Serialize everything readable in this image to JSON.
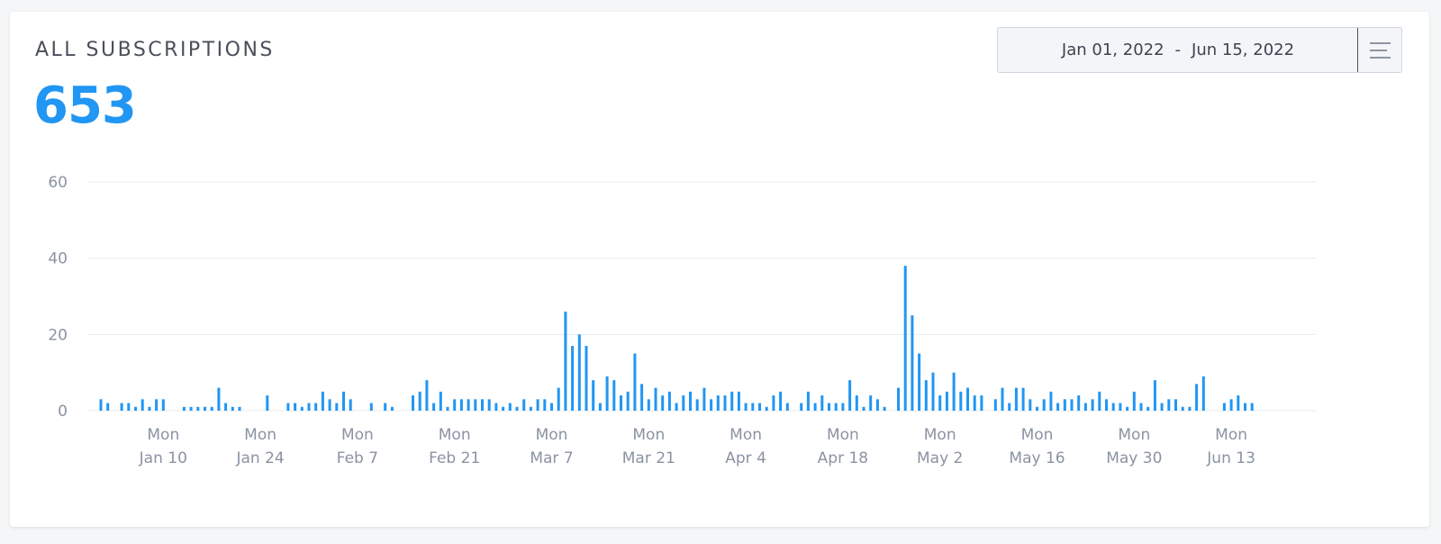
{
  "header": {
    "title": "ALL SUBSCRIPTIONS",
    "total": "653"
  },
  "date_range": {
    "start": "Jan 01, 2022",
    "separator": "-",
    "end": "Jun 15, 2022",
    "menu_icon": "hamburger-icon"
  },
  "colors": {
    "accent": "#2196f3",
    "bar": "#2196f3",
    "grid": "#e8ebef",
    "axis_text": "#8a93a3"
  },
  "chart_data": {
    "type": "bar",
    "x_start": "2022-01-01",
    "x_end": "2022-06-15",
    "ylim": [
      0,
      60
    ],
    "y_ticks": [
      0,
      20,
      40,
      60
    ],
    "grid": true,
    "x_ticks": [
      {
        "weekday": "Mon",
        "date": "Jan 10"
      },
      {
        "weekday": "Mon",
        "date": "Jan 24"
      },
      {
        "weekday": "Mon",
        "date": "Feb 7"
      },
      {
        "weekday": "Mon",
        "date": "Feb 21"
      },
      {
        "weekday": "Mon",
        "date": "Mar 7"
      },
      {
        "weekday": "Mon",
        "date": "Mar 21"
      },
      {
        "weekday": "Mon",
        "date": "Apr 4"
      },
      {
        "weekday": "Mon",
        "date": "Apr 18"
      },
      {
        "weekday": "Mon",
        "date": "May 2"
      },
      {
        "weekday": "Mon",
        "date": "May 16"
      },
      {
        "weekday": "Mon",
        "date": "May 30"
      },
      {
        "weekday": "Mon",
        "date": "Jun 13"
      }
    ],
    "values": [
      3,
      2,
      0,
      2,
      2,
      1,
      3,
      1,
      3,
      3,
      0,
      0,
      1,
      1,
      1,
      1,
      1,
      6,
      2,
      1,
      1,
      0,
      0,
      0,
      4,
      0,
      0,
      2,
      2,
      1,
      2,
      2,
      5,
      3,
      2,
      5,
      3,
      0,
      0,
      2,
      0,
      2,
      1,
      0,
      0,
      4,
      5,
      8,
      2,
      5,
      1,
      3,
      3,
      3,
      3,
      3,
      3,
      2,
      1,
      2,
      1,
      3,
      1,
      3,
      3,
      2,
      6,
      26,
      17,
      20,
      17,
      8,
      2,
      9,
      8,
      4,
      5,
      15,
      7,
      3,
      6,
      4,
      5,
      2,
      4,
      5,
      3,
      6,
      3,
      4,
      4,
      5,
      5,
      2,
      2,
      2,
      1,
      4,
      5,
      2,
      0,
      2,
      5,
      2,
      4,
      2,
      2,
      2,
      8,
      4,
      1,
      4,
      3,
      1,
      0,
      6,
      38,
      25,
      15,
      8,
      10,
      4,
      5,
      10,
      5,
      6,
      4,
      4,
      0,
      3,
      6,
      2,
      6,
      6,
      3,
      1,
      3,
      5,
      2,
      3,
      3,
      4,
      2,
      3,
      5,
      3,
      2,
      2,
      1,
      5,
      2,
      1,
      8,
      2,
      3,
      3,
      1,
      1,
      7,
      9,
      0,
      0,
      2,
      3,
      4,
      2,
      2
    ]
  }
}
